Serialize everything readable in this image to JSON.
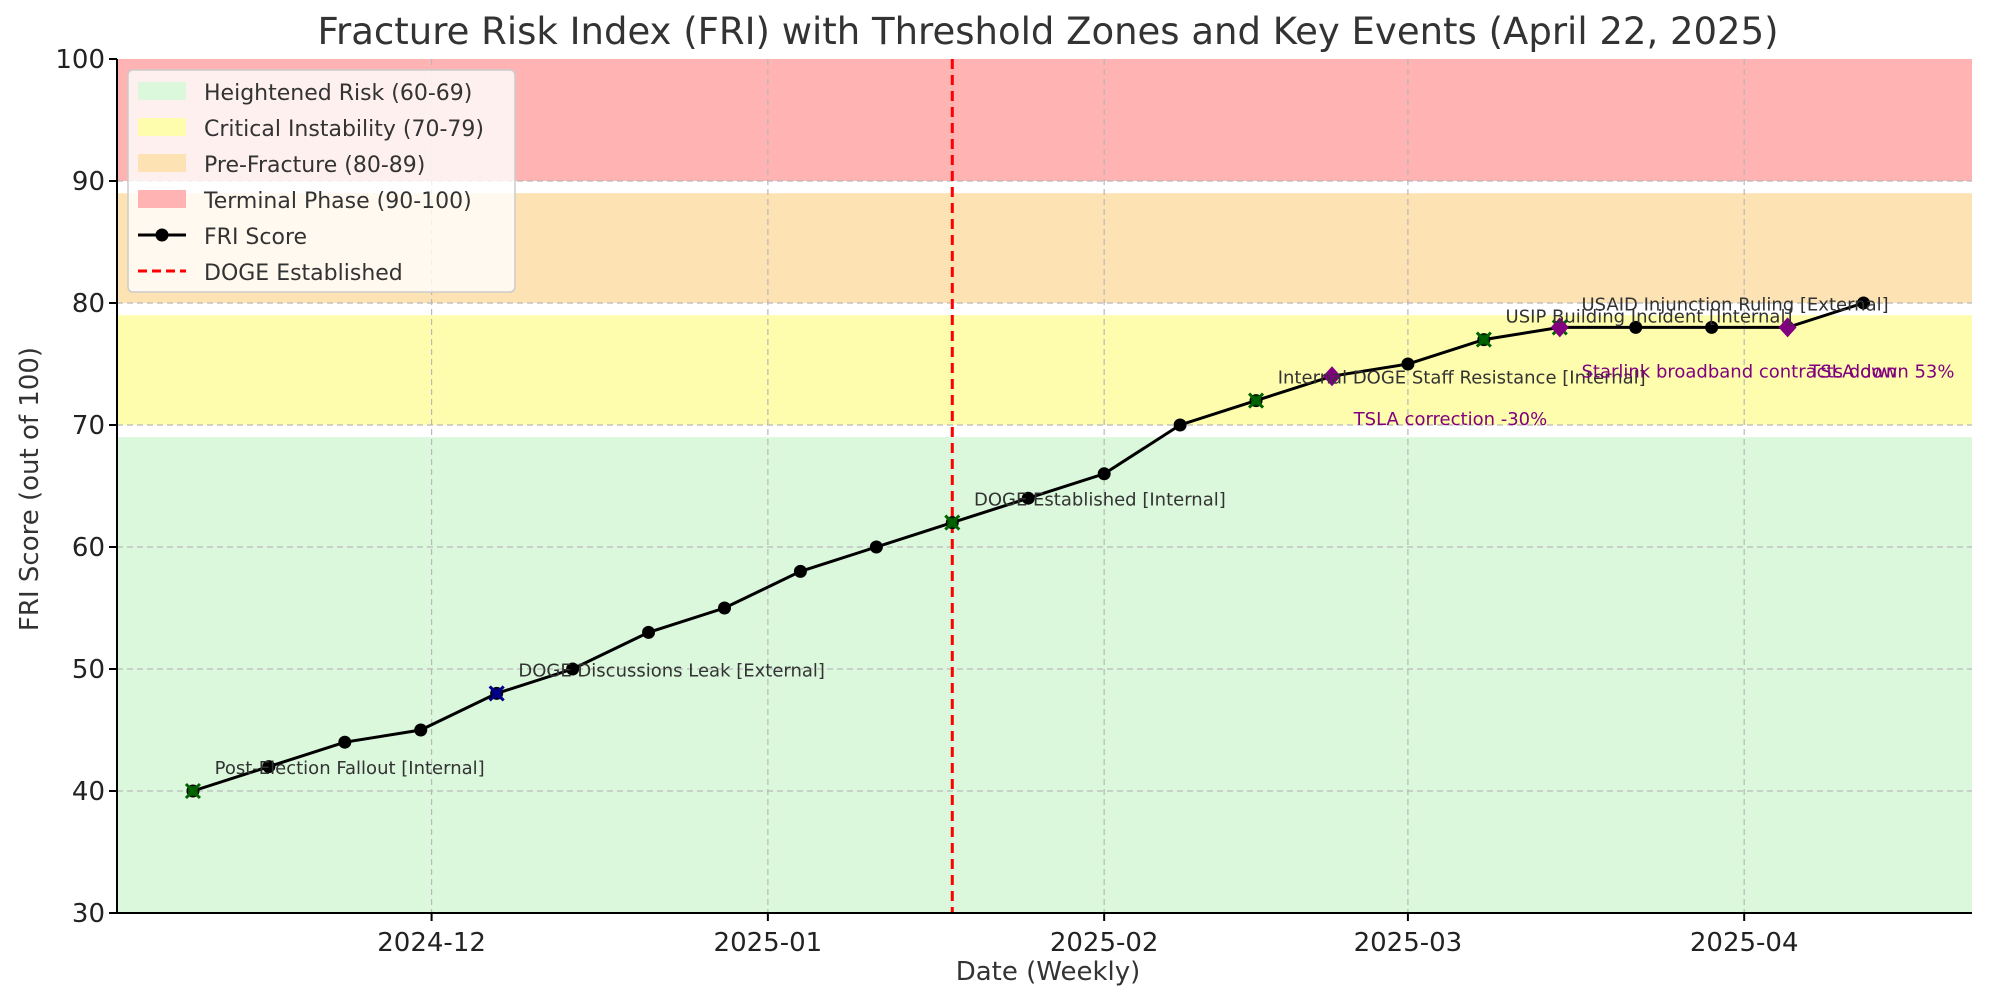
{
  "chart_data": {
    "type": "line",
    "title": "Fracture Risk Index (FRI) with Threshold Zones and Key Events (April 22, 2025)",
    "xlabel": "Date (Weekly)",
    "ylabel": "FRI Score (out of 100)",
    "ylim": [
      30,
      100
    ],
    "xlim": [
      "2024-11-02",
      "2025-04-22"
    ],
    "x_tick_labels": [
      {
        "date": "2024-12-01",
        "label": "2024-12"
      },
      {
        "date": "2025-01-01",
        "label": "2025-01"
      },
      {
        "date": "2025-02-01",
        "label": "2025-02"
      },
      {
        "date": "2025-03-01",
        "label": "2025-03"
      },
      {
        "date": "2025-04-01",
        "label": "2025-04"
      }
    ],
    "y_ticks": [
      30,
      40,
      50,
      60,
      70,
      80,
      90,
      100
    ],
    "grid": true,
    "legend_position": "upper-left",
    "zones": [
      {
        "name": "Heightened Risk (60-69)",
        "range": [
          30,
          69
        ],
        "color": "#dbf7dc"
      },
      {
        "name": "Critical Instability (70-79)",
        "range": [
          70,
          79
        ],
        "color": "#fefdae"
      },
      {
        "name": "Pre-Fracture (80-89)",
        "range": [
          80,
          89
        ],
        "color": "#fde2b4"
      },
      {
        "name": "Terminal Phase (90-100)",
        "range": [
          90,
          100
        ],
        "color": "#ffb3b3"
      }
    ],
    "series": [
      {
        "name": "FRI Score",
        "color": "#000000",
        "marker": "circle",
        "x": [
          "2024-11-09",
          "2024-11-16",
          "2024-11-23",
          "2024-11-30",
          "2024-12-07",
          "2024-12-14",
          "2024-12-21",
          "2024-12-28",
          "2025-01-04",
          "2025-01-11",
          "2025-01-18",
          "2025-01-25",
          "2025-02-01",
          "2025-02-08",
          "2025-02-15",
          "2025-02-22",
          "2025-03-01",
          "2025-03-08",
          "2025-03-15",
          "2025-03-22",
          "2025-03-29",
          "2025-04-05",
          "2025-04-12"
        ],
        "values": [
          40,
          42,
          44,
          45,
          48,
          50,
          53,
          55,
          58,
          60,
          62,
          64,
          66,
          70,
          72,
          74,
          75,
          77,
          78,
          78,
          78,
          78,
          80
        ]
      }
    ],
    "reference_line": {
      "name": "DOGE Established",
      "x": "2025-01-18",
      "color": "#ff0000",
      "style": "dashed"
    },
    "event_markers": [
      {
        "date": "2024-11-09",
        "value": 40,
        "shape": "x",
        "color": "#006400"
      },
      {
        "date": "2024-12-07",
        "value": 48,
        "shape": "x",
        "color": "#00008b"
      },
      {
        "date": "2025-01-18",
        "value": 62,
        "shape": "x",
        "color": "#006400"
      },
      {
        "date": "2025-02-15",
        "value": 72,
        "shape": "x",
        "color": "#006400"
      },
      {
        "date": "2025-03-08",
        "value": 77,
        "shape": "x",
        "color": "#006400"
      },
      {
        "date": "2025-03-15",
        "value": 78,
        "shape": "x",
        "color": "#006400"
      },
      {
        "date": "2025-02-22",
        "value": 74,
        "shape": "diamond",
        "color": "#800080"
      },
      {
        "date": "2025-03-15",
        "value": 78,
        "shape": "diamond",
        "color": "#800080"
      },
      {
        "date": "2025-04-05",
        "value": 78,
        "shape": "diamond",
        "color": "#800080"
      }
    ],
    "annotations": [
      {
        "text": "Post-Election Fallout [Internal]",
        "date": "2024-11-11",
        "value": 41.4,
        "color": "#333333"
      },
      {
        "text": "DOGE Discussions Leak [External]",
        "date": "2024-12-09",
        "value": 49.4,
        "color": "#333333"
      },
      {
        "text": "DOGE Established [Internal]",
        "date": "2025-01-20",
        "value": 63.4,
        "color": "#333333"
      },
      {
        "text": "Internal DOGE Staff Resistance [Internal]",
        "date": "2025-02-17",
        "value": 73.4,
        "color": "#333333"
      },
      {
        "text": "USIP Building Incident [Internal]",
        "date": "2025-03-10",
        "value": 78.4,
        "color": "#333333"
      },
      {
        "text": "USAID Injunction Ruling [External]",
        "date": "2025-03-17",
        "value": 79.4,
        "color": "#333333"
      },
      {
        "text": "TSLA correction -30%",
        "date": "2025-02-24",
        "value": 70.0,
        "color": "#800080"
      },
      {
        "text": "Starlink broadband contracts down",
        "date": "2025-03-17",
        "value": 73.9,
        "color": "#800080"
      },
      {
        "text": "TSLA down 53%",
        "date": "2025-04-07",
        "value": 73.9,
        "color": "#800080"
      }
    ]
  }
}
